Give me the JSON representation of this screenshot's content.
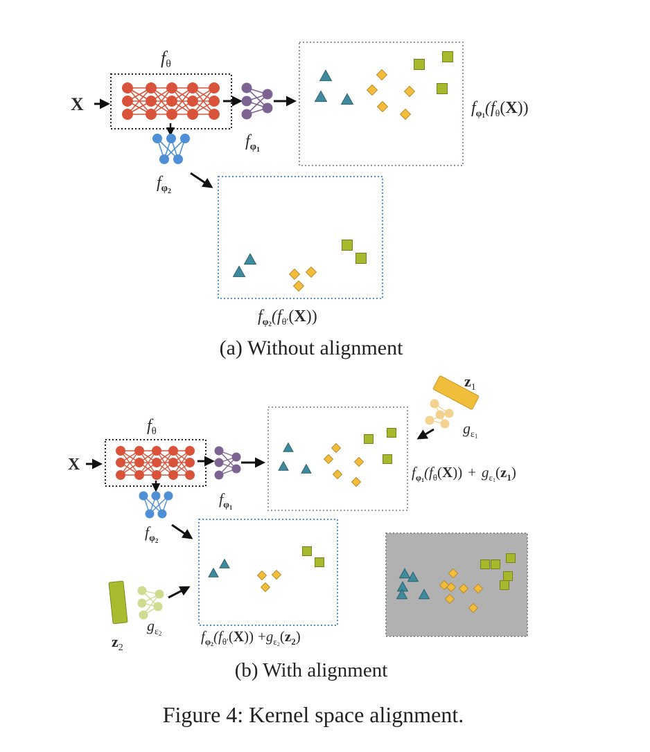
{
  "colors": {
    "encoder": "#d9533a",
    "head_phi1": "#7d6391",
    "head_phi2": "#4f8fd6",
    "triangle": "#3f8a9c",
    "diamond": "#f3bd3b",
    "square": "#a7b82c",
    "aligned_bg": "#b1b1b1",
    "z1_bar": "#f1be3c",
    "z2_bar": "#a9bb2f",
    "g_eps1": "#f3d18e",
    "g_eps2": "#cddc8e",
    "box_phi1_border": "#9b8ba8",
    "box_phi2_border": "#4f8fd6"
  },
  "panel_a": {
    "input": "X",
    "encoder": {
      "label": "f",
      "sub": "θ"
    },
    "head1": {
      "label": "f",
      "sub": "φ",
      "subsub": "1"
    },
    "head2": {
      "label": "f",
      "sub": "φ",
      "subsub": "2"
    },
    "output1": {
      "pre": "f",
      "s1": "φ",
      "s2": "1",
      "mid": "(f",
      "s3": "θ",
      "post": "(",
      "x": "X",
      "end": "))"
    },
    "output2": {
      "pre": "f",
      "s1": "φ",
      "s2": "2",
      "mid": "(f",
      "s3": "θ",
      "prime": "′",
      "post": "(",
      "x": "X",
      "end": "))"
    },
    "caption": "(a) Without alignment"
  },
  "panel_b": {
    "input": "X",
    "encoder": {
      "label": "f",
      "sub": "θ"
    },
    "head1": {
      "label": "f",
      "sub": "φ",
      "subsub": "1"
    },
    "head2": {
      "label": "f",
      "sub": "φ",
      "subsub": "2"
    },
    "z1": {
      "label": "z",
      "sub": "1"
    },
    "z2": {
      "label": "z",
      "sub": "2"
    },
    "g1": {
      "label": "g",
      "sub": "ε",
      "subsub": "1"
    },
    "g2": {
      "label": "g",
      "sub": "ε",
      "subsub": "2"
    },
    "output1": {
      "pre": "f",
      "s1": "φ",
      "s2": "1",
      "mid": "(f",
      "s3": "θ",
      "post": "(",
      "x": "X",
      "end": "))",
      "plus": "+",
      "g": "g",
      "gs1": "ε",
      "gs2": "1",
      "z": "z",
      "zs": "1"
    },
    "output2": {
      "pre": "f",
      "s1": "φ",
      "s2": "2",
      "mid": "(f",
      "s3": "θ",
      "prime": "′",
      "post": "(",
      "x": "X",
      "end": "))",
      "plus": "+",
      "g": "g",
      "gs1": "ε",
      "gs2": "2",
      "z": "z",
      "zs": "2"
    },
    "caption": "(b) With alignment"
  },
  "figure_caption": "Figure 4: Kernel space alignment."
}
